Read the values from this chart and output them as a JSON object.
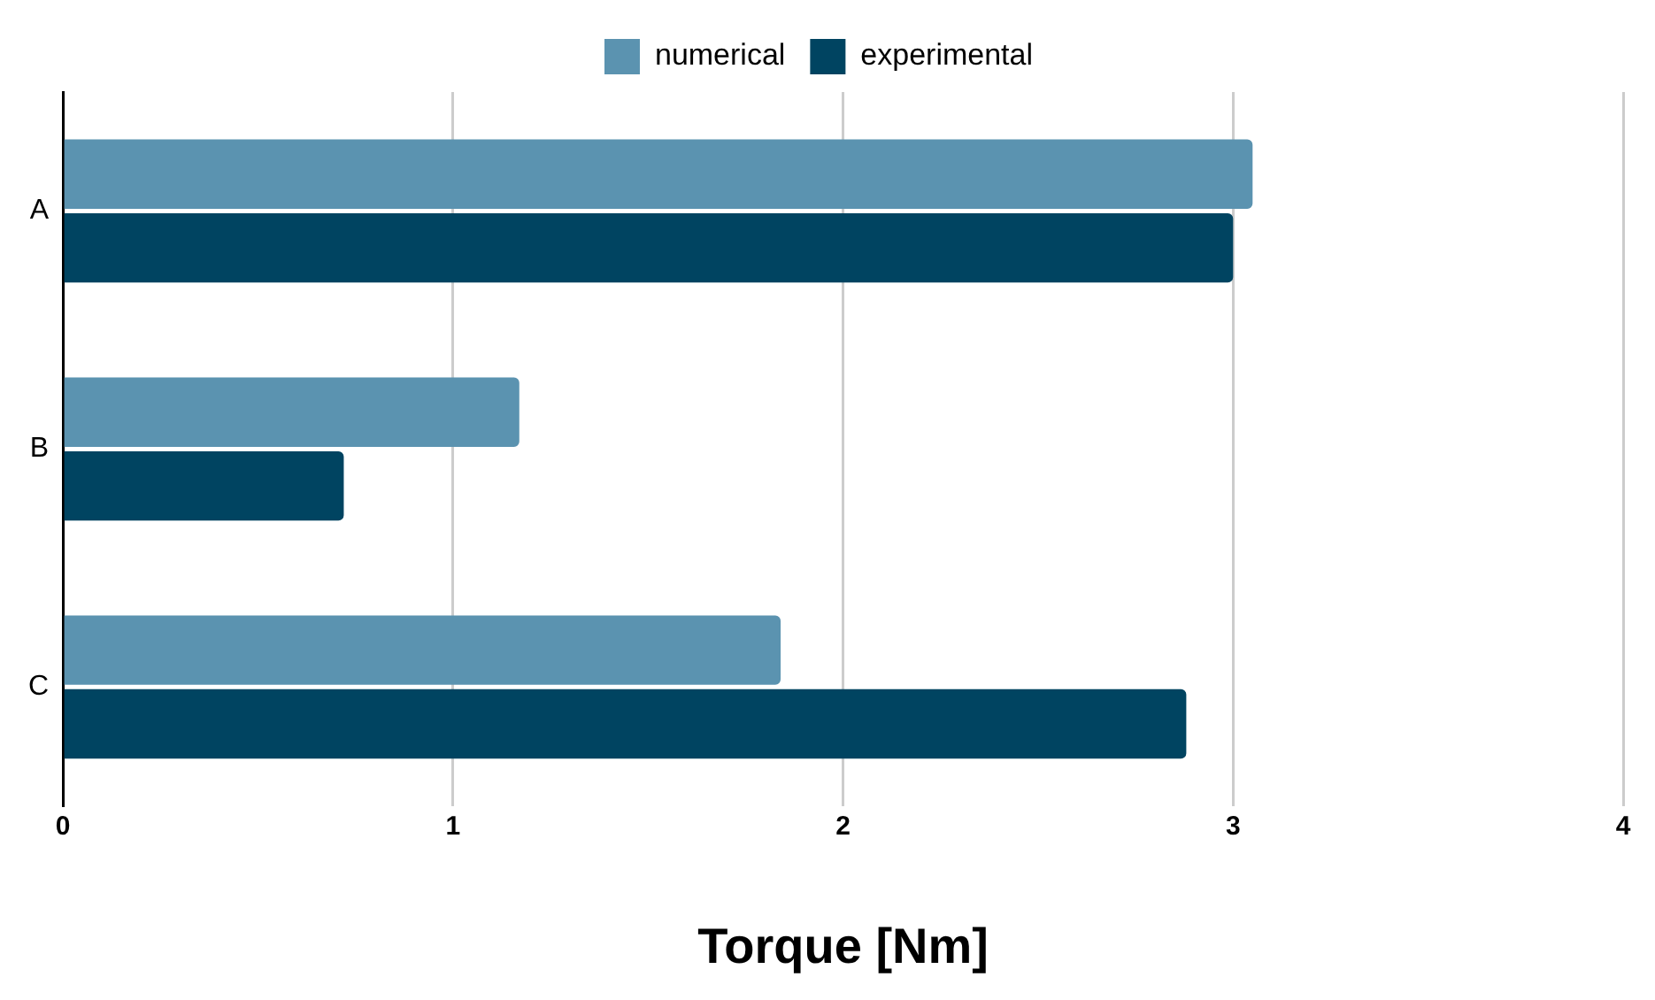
{
  "chart_data": {
    "type": "bar",
    "orientation": "horizontal",
    "categories": [
      "A",
      "B",
      "C"
    ],
    "series": [
      {
        "name": "numerical",
        "color": "#5b93b0",
        "values": [
          3.05,
          1.17,
          1.84
        ]
      },
      {
        "name": "experimental",
        "color": "#004461",
        "values": [
          3.0,
          0.72,
          2.88
        ]
      }
    ],
    "xlabel": "Torque [Nm]",
    "xlim": [
      0,
      4
    ],
    "xticks": [
      0,
      1,
      2,
      3,
      4
    ],
    "grid": "x",
    "legend": "top"
  }
}
